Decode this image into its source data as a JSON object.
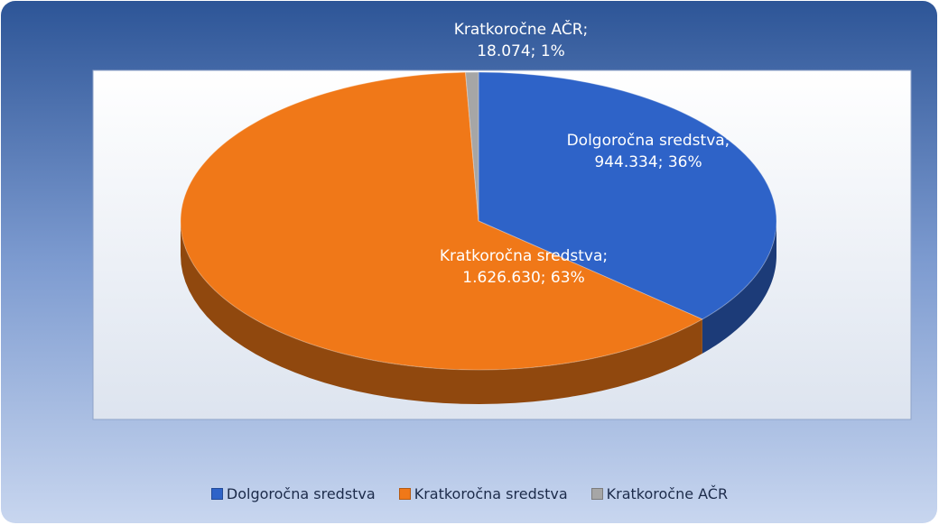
{
  "chart_data": {
    "type": "pie",
    "categories": [
      "Dolgoročna sredstva",
      "Kratkoročna sredstva",
      "Kratkoročne AČR"
    ],
    "values": [
      944334,
      1626630,
      18074
    ],
    "value_labels": [
      "Dolgoročna sredstva; 944.334; 36%",
      "Kratkoročna sredstva; 1.626.630; 63%",
      "Kratkoročne AČR; 18.074; 1%"
    ],
    "colors": [
      "#2e63c8",
      "#f07818",
      "#a6a6a6"
    ],
    "legend": "bottom"
  }
}
